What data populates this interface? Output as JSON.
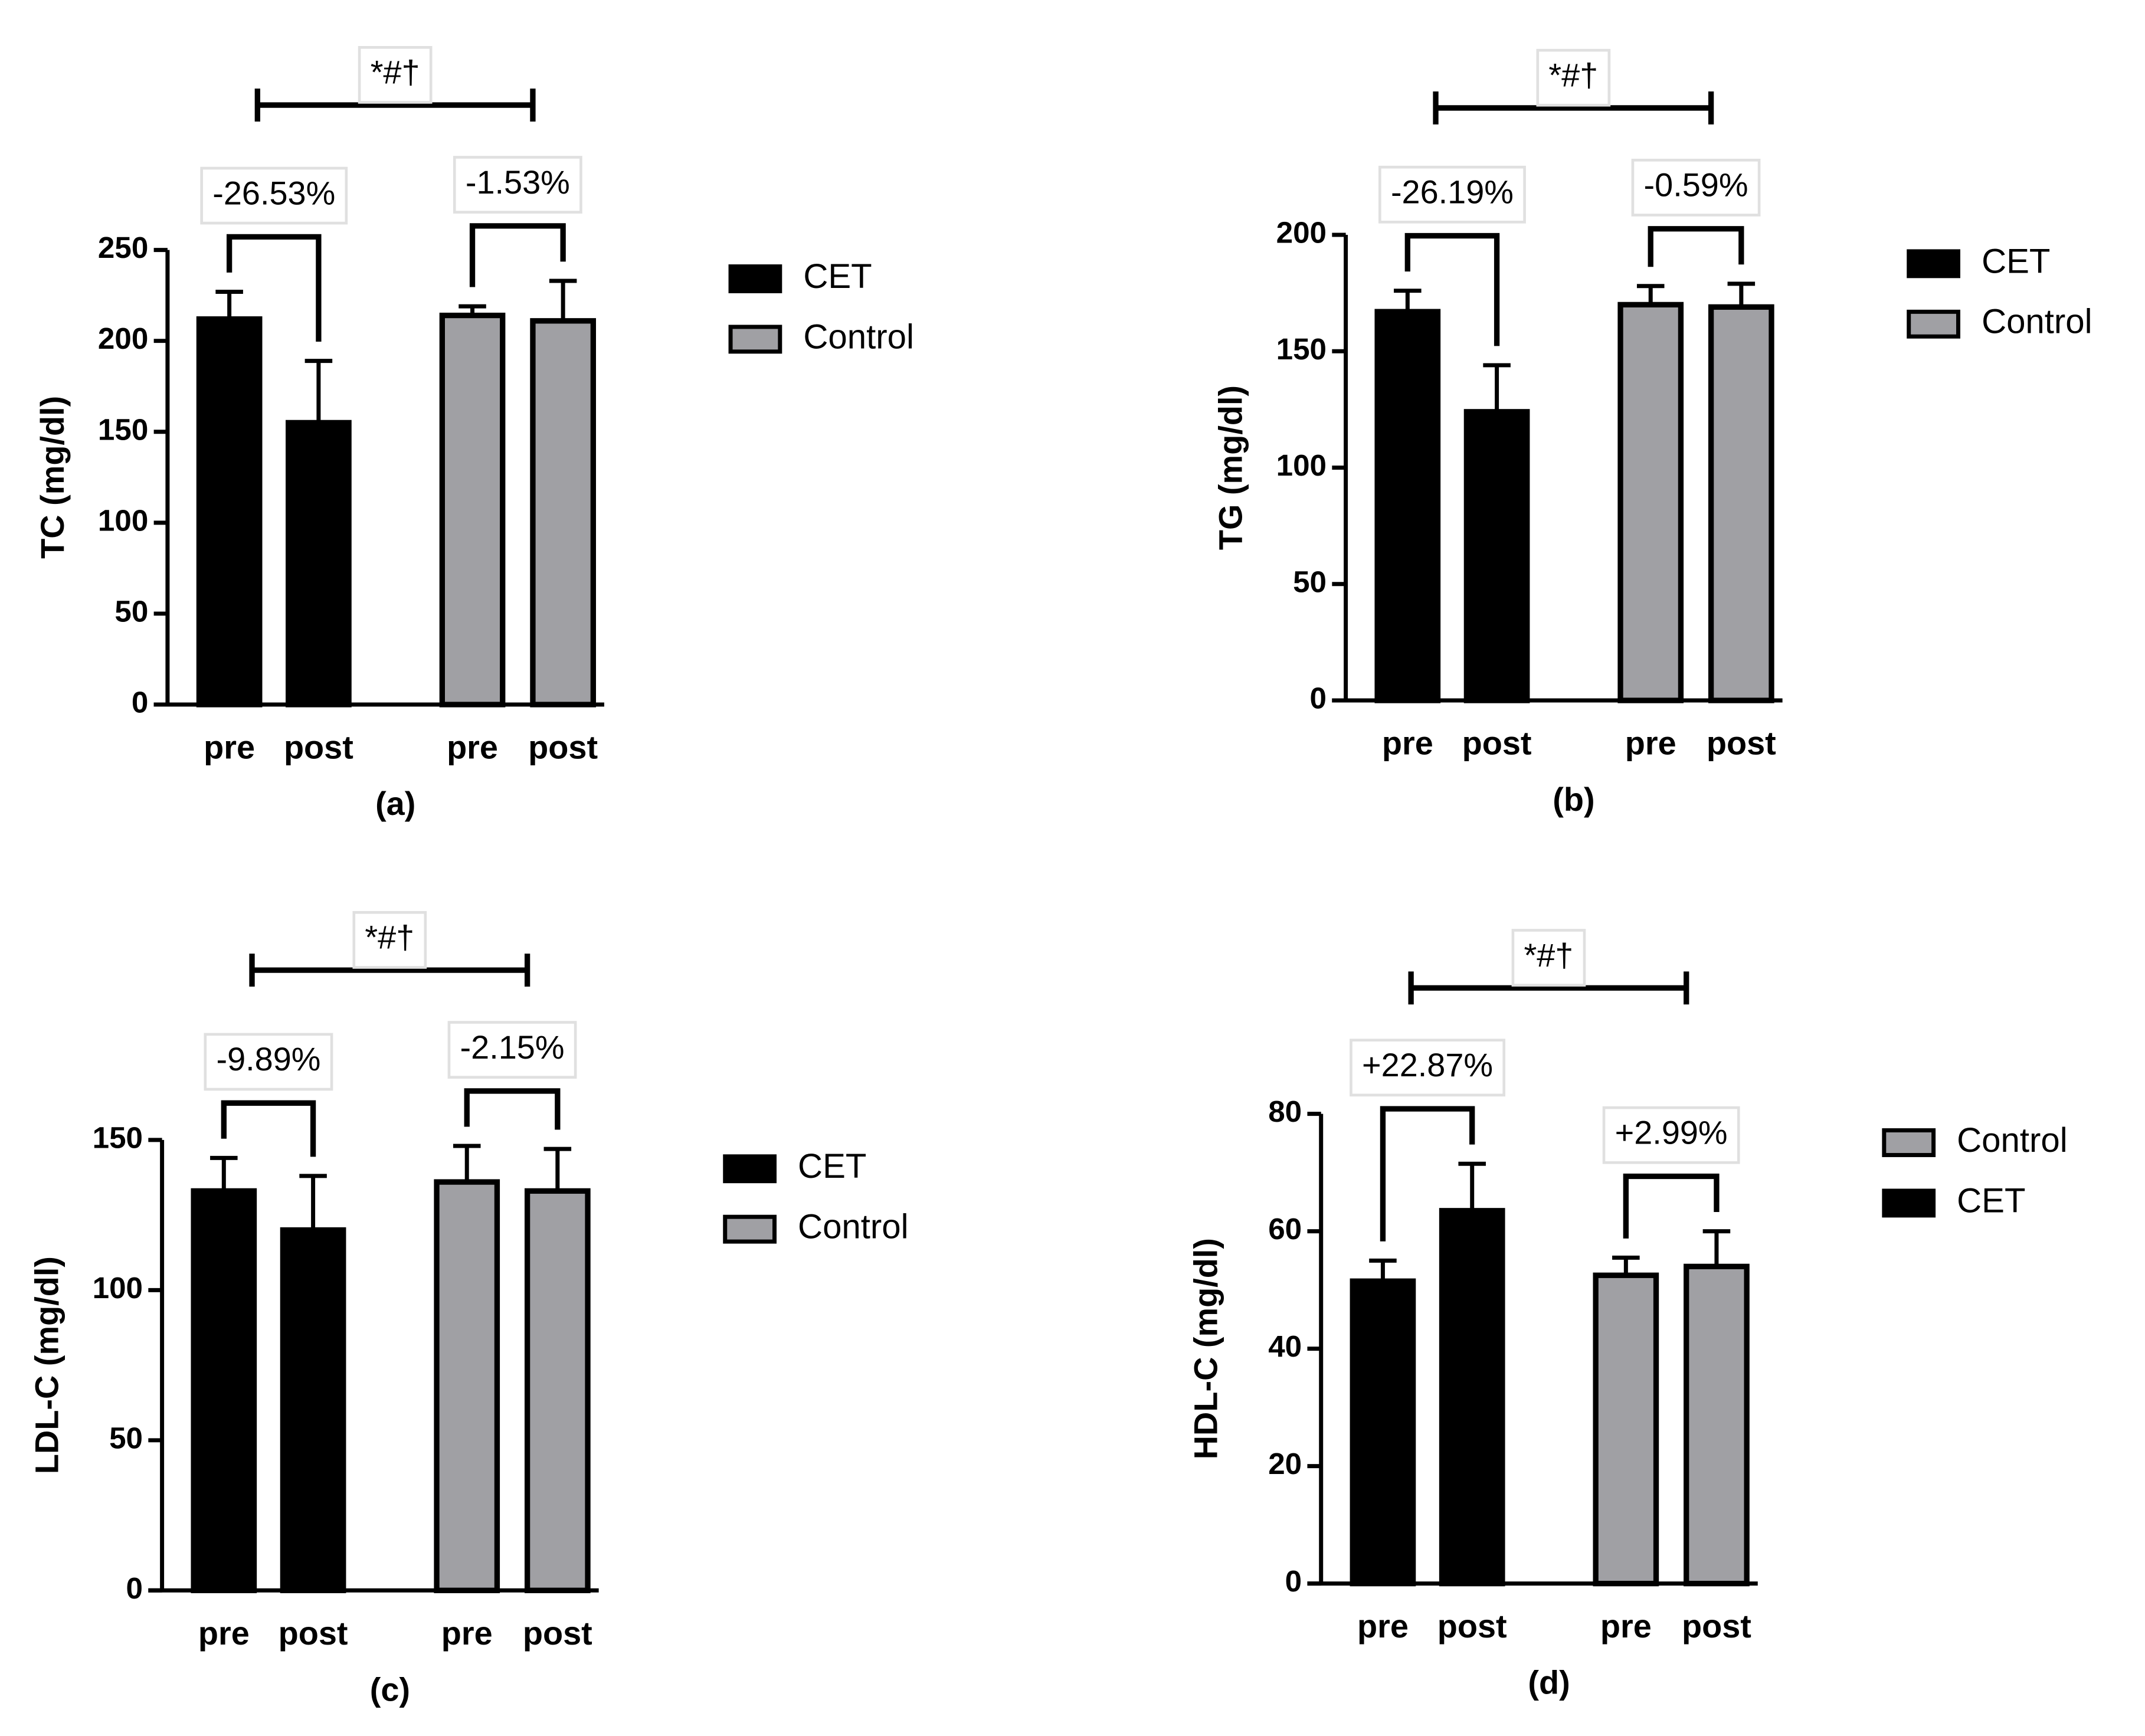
{
  "chart_data": [
    {
      "type": "bar",
      "ylabel": "TC (mg/dl)",
      "caption": "(a)",
      "categories": [
        "pre",
        "post",
        "pre",
        "post"
      ],
      "series": [
        {
          "name": "CET",
          "color": "#000000",
          "values": [
            212,
            155,
            null,
            null
          ],
          "errors": [
            15,
            34,
            null,
            null
          ]
        },
        {
          "name": "Control",
          "color": "#a0a0a4",
          "values": [
            null,
            null,
            214,
            211
          ],
          "errors": [
            null,
            null,
            5,
            22
          ]
        }
      ],
      "ylim": [
        0,
        250
      ],
      "yticks": [
        0,
        50,
        100,
        150,
        200,
        250
      ],
      "annotations": [
        "-26.53%",
        "-1.53%",
        "*#†"
      ]
    },
    {
      "type": "bar",
      "ylabel": "TG (mg/dl)",
      "caption": "(b)",
      "categories": [
        "pre",
        "post",
        "pre",
        "post"
      ],
      "series": [
        {
          "name": "CET",
          "color": "#000000",
          "values": [
            167,
            124,
            null,
            null
          ],
          "errors": [
            9,
            20,
            null,
            null
          ]
        },
        {
          "name": "Control",
          "color": "#a0a0a4",
          "values": [
            null,
            null,
            170,
            169
          ],
          "errors": [
            null,
            null,
            8,
            10
          ]
        }
      ],
      "ylim": [
        0,
        200
      ],
      "yticks": [
        0,
        50,
        100,
        150,
        200
      ],
      "annotations": [
        "-26.19%",
        "-0.59%",
        "*#†"
      ]
    },
    {
      "type": "bar",
      "ylabel": "LDL-C (mg/dl)",
      "caption": "(c)",
      "categories": [
        "pre",
        "post",
        "pre",
        "post"
      ],
      "series": [
        {
          "name": "CET",
          "color": "#000000",
          "values": [
            133,
            120,
            null,
            null
          ],
          "errors": [
            11,
            18,
            null,
            null
          ]
        },
        {
          "name": "Control",
          "color": "#a0a0a4",
          "values": [
            null,
            null,
            136,
            133
          ],
          "errors": [
            null,
            null,
            12,
            14
          ]
        }
      ],
      "ylim": [
        0,
        150
      ],
      "yticks": [
        0,
        50,
        100,
        150
      ],
      "annotations": [
        "-9.89%",
        "-2.15%",
        "*#†"
      ]
    },
    {
      "type": "bar",
      "ylabel": "HDL-C (mg/dl)",
      "caption": "(d)",
      "categories": [
        "pre",
        "post",
        "pre",
        "post"
      ],
      "series": [
        {
          "name": "Control",
          "color": "#a0a0a4",
          "values": [
            null,
            null,
            52.5,
            54
          ],
          "errors": [
            null,
            null,
            3,
            6
          ]
        },
        {
          "name": "CET",
          "color": "#000000",
          "values": [
            51.5,
            63.5,
            null,
            null
          ],
          "errors": [
            3.5,
            8,
            null,
            null
          ]
        }
      ],
      "ylim": [
        0,
        80
      ],
      "yticks": [
        0,
        20,
        40,
        60,
        80
      ],
      "annotations": [
        "+22.87%",
        "+2.99%",
        "*#†"
      ]
    }
  ]
}
